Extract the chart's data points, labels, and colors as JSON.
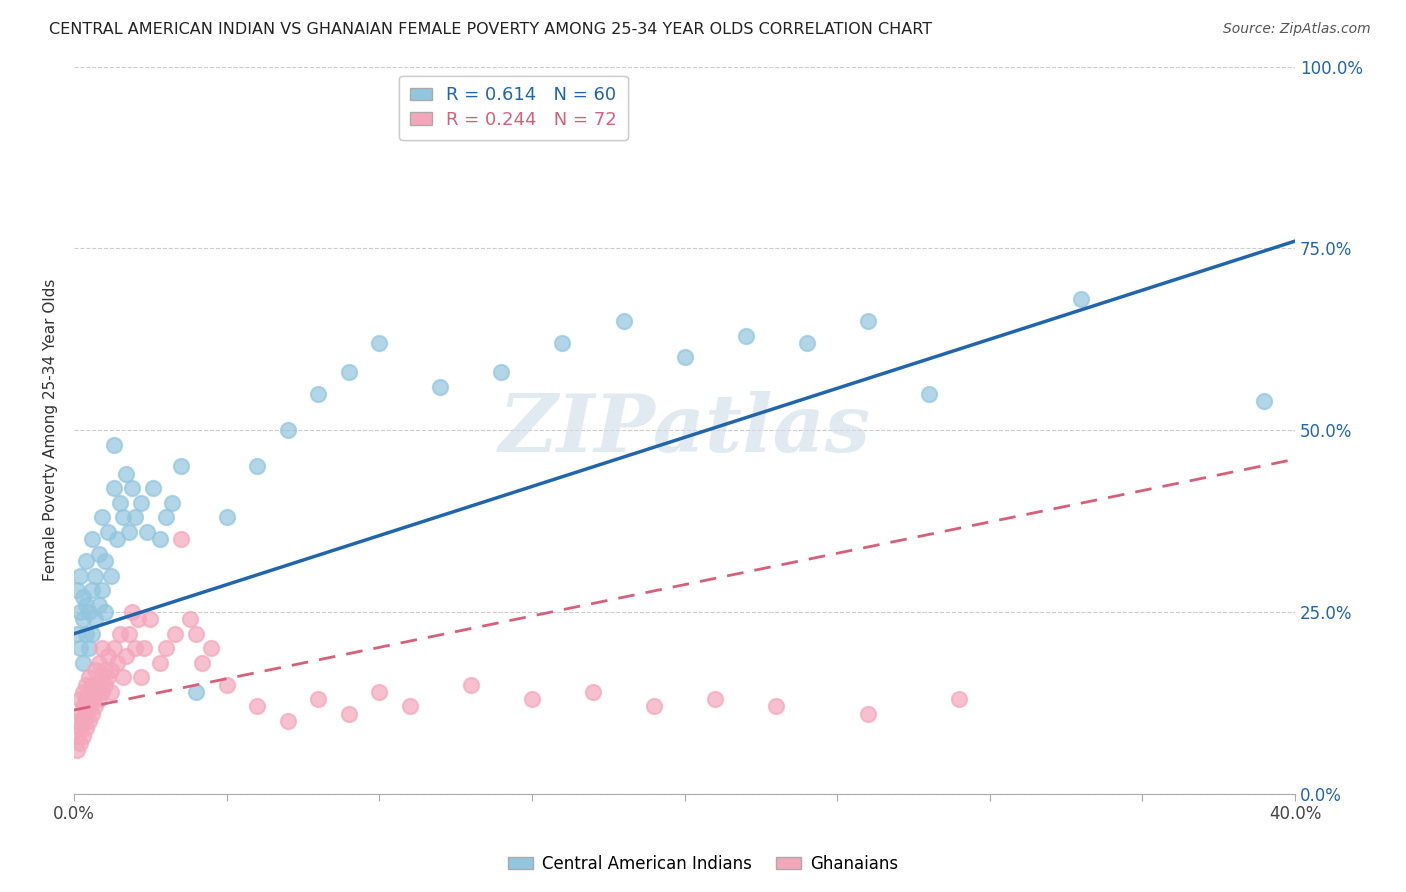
{
  "title": "CENTRAL AMERICAN INDIAN VS GHANAIAN FEMALE POVERTY AMONG 25-34 YEAR OLDS CORRELATION CHART",
  "source": "Source: ZipAtlas.com",
  "ylabel": "Female Poverty Among 25-34 Year Olds",
  "legend_blue_label": "Central American Indians",
  "legend_pink_label": "Ghanaians",
  "blue_R": 0.614,
  "blue_N": 60,
  "pink_R": 0.244,
  "pink_N": 72,
  "blue_color": "#92c5de",
  "pink_color": "#f4a6bb",
  "blue_line_color": "#2166ac",
  "pink_line_color": "#d6607a",
  "watermark": "ZIPatlas",
  "xlim": [
    0.0,
    0.4
  ],
  "ylim": [
    0.0,
    1.0
  ],
  "blue_trendline": [
    0.0,
    0.22,
    0.4,
    0.76
  ],
  "pink_trendline": [
    0.0,
    0.115,
    0.4,
    0.46
  ],
  "blue_scatter_x": [
    0.001,
    0.001,
    0.002,
    0.002,
    0.002,
    0.003,
    0.003,
    0.003,
    0.004,
    0.004,
    0.004,
    0.005,
    0.005,
    0.006,
    0.006,
    0.006,
    0.007,
    0.007,
    0.008,
    0.008,
    0.009,
    0.009,
    0.01,
    0.01,
    0.011,
    0.012,
    0.013,
    0.013,
    0.014,
    0.015,
    0.016,
    0.017,
    0.018,
    0.019,
    0.02,
    0.022,
    0.024,
    0.026,
    0.028,
    0.03,
    0.032,
    0.035,
    0.04,
    0.05,
    0.06,
    0.07,
    0.08,
    0.09,
    0.1,
    0.12,
    0.14,
    0.16,
    0.18,
    0.2,
    0.22,
    0.24,
    0.26,
    0.28,
    0.33,
    0.39
  ],
  "blue_scatter_y": [
    0.22,
    0.28,
    0.2,
    0.25,
    0.3,
    0.18,
    0.24,
    0.27,
    0.22,
    0.26,
    0.32,
    0.2,
    0.25,
    0.22,
    0.28,
    0.35,
    0.24,
    0.3,
    0.26,
    0.33,
    0.28,
    0.38,
    0.25,
    0.32,
    0.36,
    0.3,
    0.42,
    0.48,
    0.35,
    0.4,
    0.38,
    0.44,
    0.36,
    0.42,
    0.38,
    0.4,
    0.36,
    0.42,
    0.35,
    0.38,
    0.4,
    0.45,
    0.14,
    0.38,
    0.45,
    0.5,
    0.55,
    0.58,
    0.62,
    0.56,
    0.58,
    0.62,
    0.65,
    0.6,
    0.63,
    0.62,
    0.65,
    0.55,
    0.68,
    0.54
  ],
  "pink_scatter_x": [
    0.001,
    0.001,
    0.001,
    0.002,
    0.002,
    0.002,
    0.002,
    0.003,
    0.003,
    0.003,
    0.003,
    0.004,
    0.004,
    0.004,
    0.004,
    0.005,
    0.005,
    0.005,
    0.005,
    0.006,
    0.006,
    0.006,
    0.007,
    0.007,
    0.007,
    0.008,
    0.008,
    0.008,
    0.009,
    0.009,
    0.009,
    0.01,
    0.01,
    0.011,
    0.011,
    0.012,
    0.012,
    0.013,
    0.014,
    0.015,
    0.016,
    0.017,
    0.018,
    0.019,
    0.02,
    0.021,
    0.022,
    0.023,
    0.025,
    0.028,
    0.03,
    0.033,
    0.035,
    0.038,
    0.04,
    0.042,
    0.045,
    0.05,
    0.06,
    0.07,
    0.08,
    0.09,
    0.1,
    0.11,
    0.13,
    0.15,
    0.17,
    0.19,
    0.21,
    0.23,
    0.26,
    0.29
  ],
  "pink_scatter_y": [
    0.08,
    0.1,
    0.06,
    0.07,
    0.09,
    0.11,
    0.13,
    0.08,
    0.1,
    0.12,
    0.14,
    0.09,
    0.11,
    0.13,
    0.15,
    0.1,
    0.12,
    0.14,
    0.16,
    0.11,
    0.13,
    0.15,
    0.12,
    0.14,
    0.17,
    0.13,
    0.15,
    0.18,
    0.14,
    0.16,
    0.2,
    0.15,
    0.17,
    0.16,
    0.19,
    0.14,
    0.17,
    0.2,
    0.18,
    0.22,
    0.16,
    0.19,
    0.22,
    0.25,
    0.2,
    0.24,
    0.16,
    0.2,
    0.24,
    0.18,
    0.2,
    0.22,
    0.35,
    0.24,
    0.22,
    0.18,
    0.2,
    0.15,
    0.12,
    0.1,
    0.13,
    0.11,
    0.14,
    0.12,
    0.15,
    0.13,
    0.14,
    0.12,
    0.13,
    0.12,
    0.11,
    0.13
  ]
}
